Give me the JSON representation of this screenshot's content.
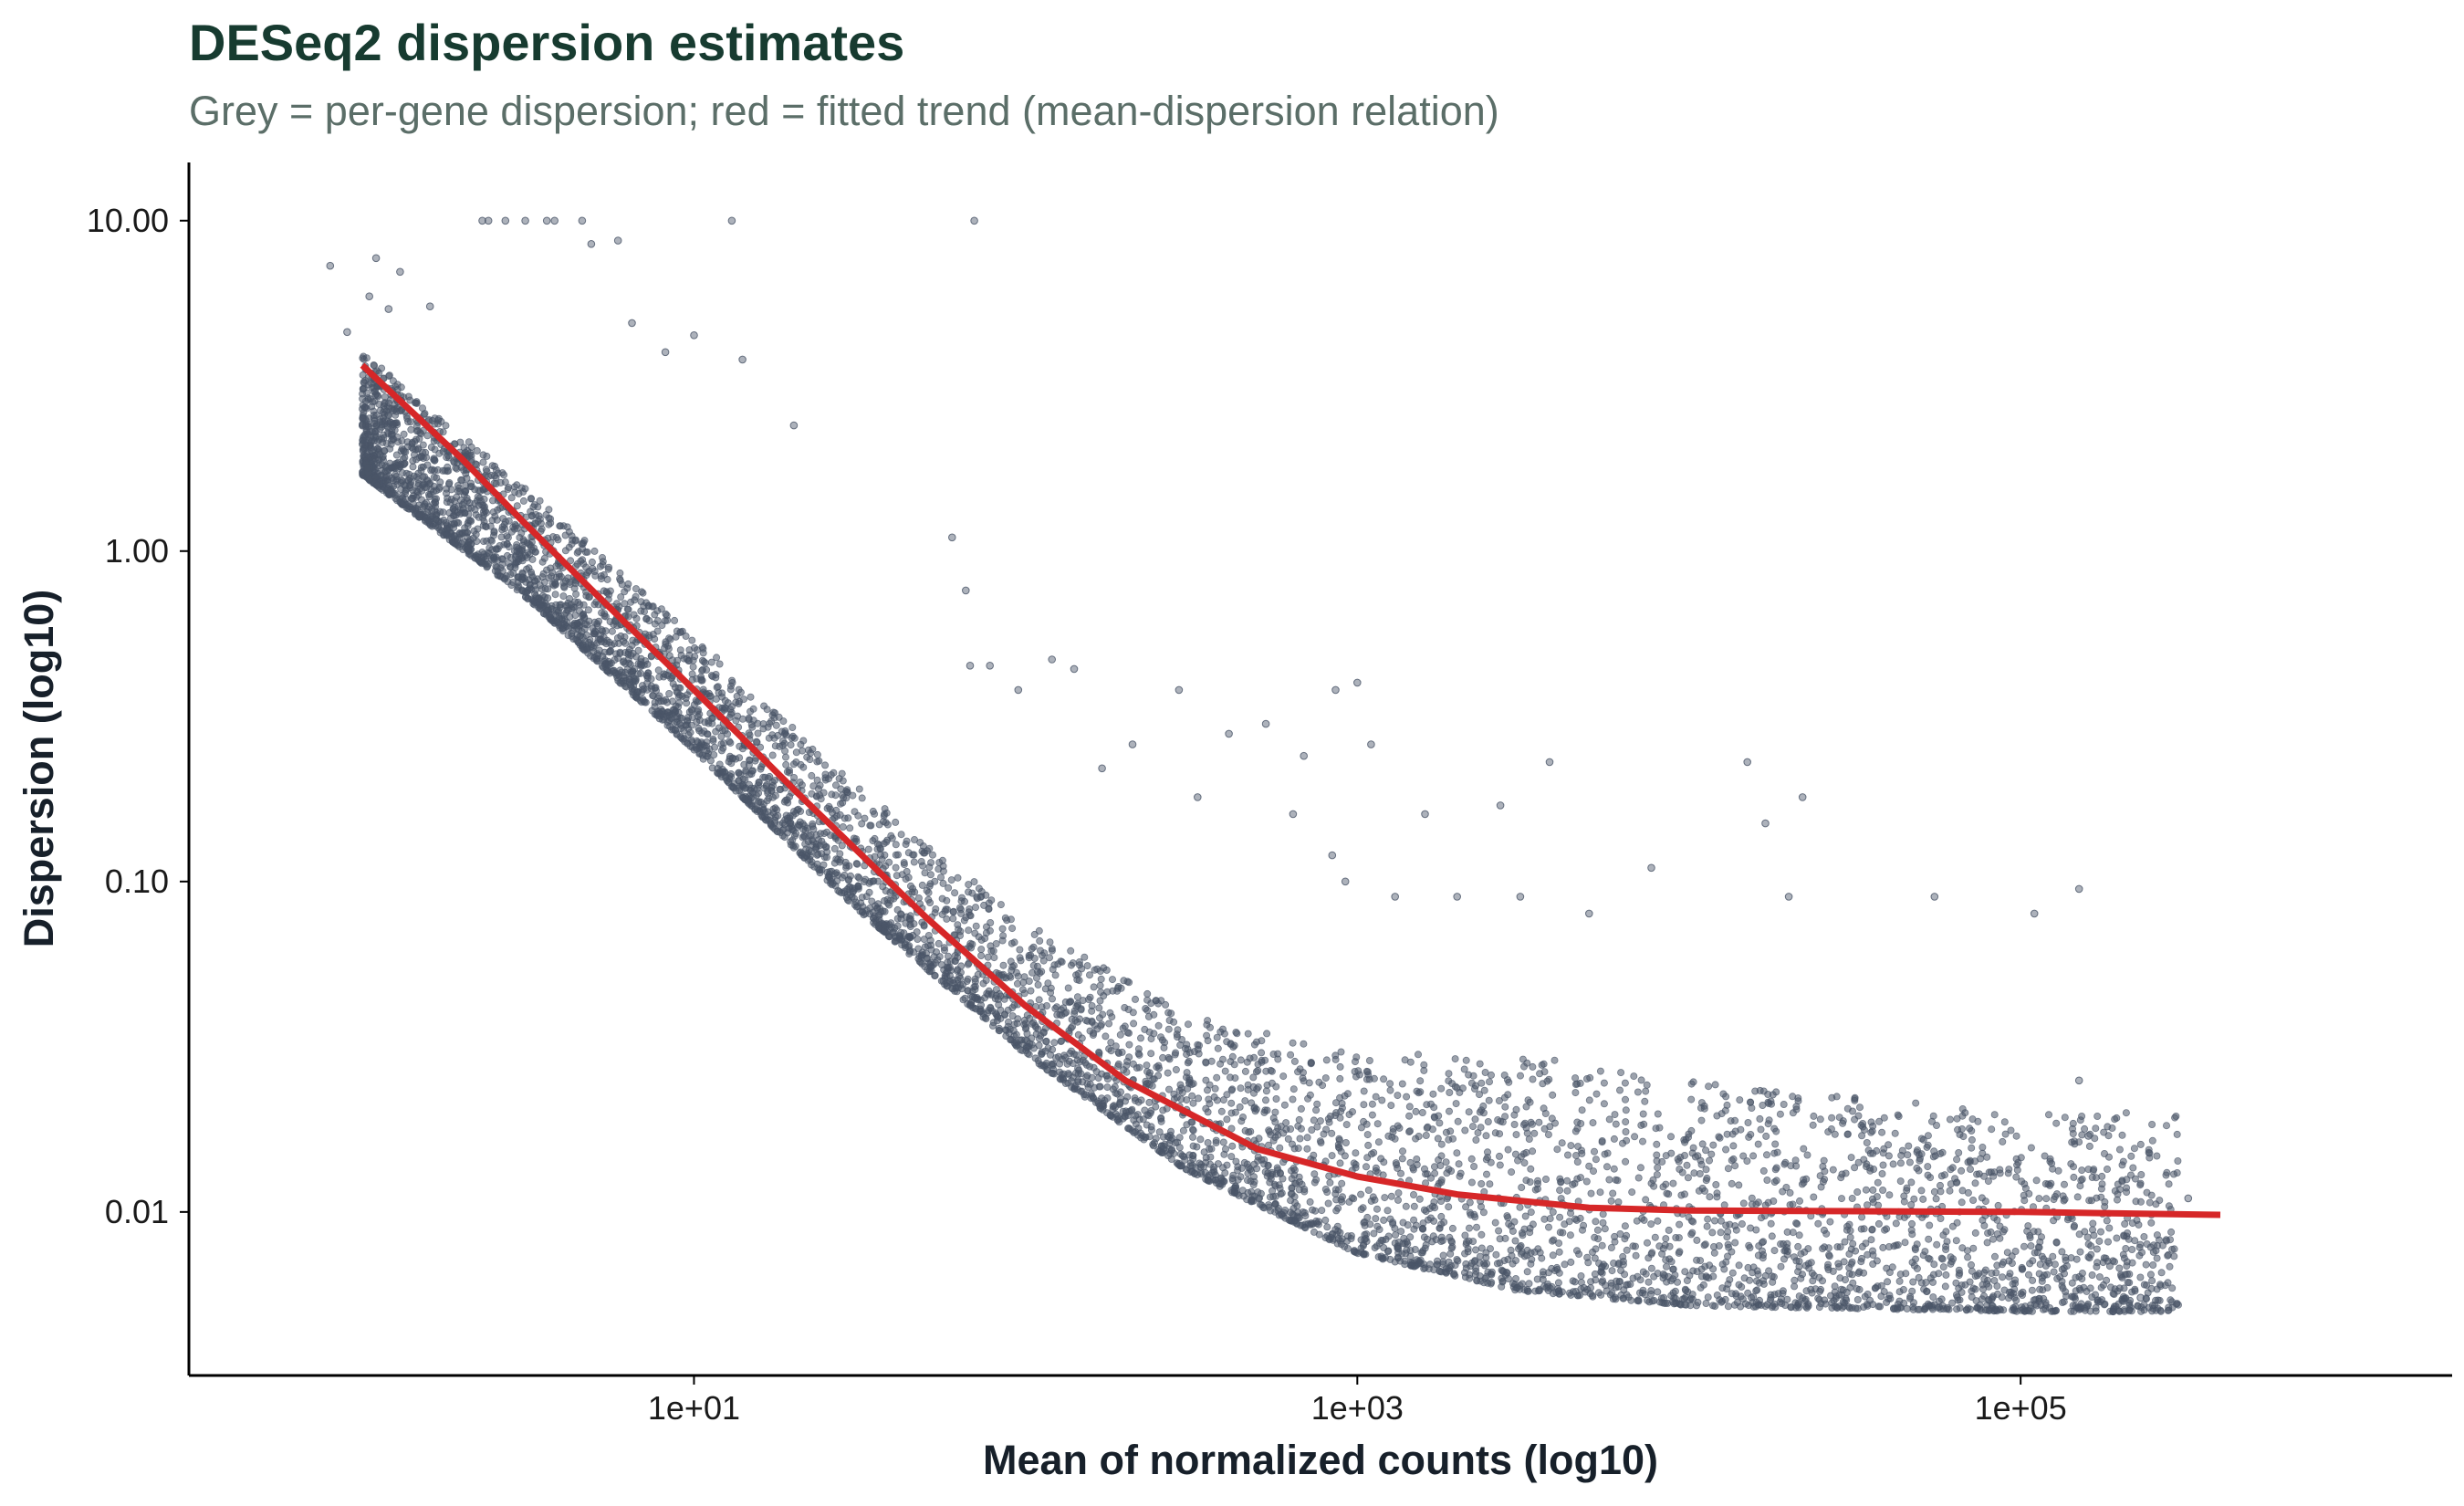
{
  "chart_data": {
    "type": "scatter",
    "title": "DESeq2 dispersion estimates",
    "subtitle": "Grey = per-gene dispersion; red = fitted trend (mean-dispersion relation)",
    "xlabel": "Mean of normalized counts (log10)",
    "ylabel": "Dispersion (log10)",
    "x_scale": "log10",
    "y_scale": "log10",
    "xlim": [
      0.3,
      2000000
    ],
    "ylim": [
      0.0032,
      15
    ],
    "x_ticks": [
      {
        "value": 10,
        "label": "1e+01"
      },
      {
        "value": 1000,
        "label": "1e+03"
      },
      {
        "value": 100000,
        "label": "1e+05"
      }
    ],
    "y_ticks": [
      {
        "value": 10,
        "label": "10.00"
      },
      {
        "value": 1,
        "label": "1.00"
      },
      {
        "value": 0.1,
        "label": "0.10"
      },
      {
        "value": 0.01,
        "label": "0.01"
      }
    ],
    "grid": false,
    "legend": "none",
    "colors": {
      "points": "#4a5568",
      "trend": "#d62728",
      "title": "#173b30",
      "subtitle": "#5b6e68",
      "axis": "#000000"
    },
    "series": [
      {
        "kind": "points",
        "points": [
          [
            0.8,
            7.3
          ],
          [
            1.1,
            7.7
          ],
          [
            1.3,
            7.0
          ],
          [
            1.2,
            5.4
          ],
          [
            1.05,
            5.9
          ],
          [
            0.9,
            4.6
          ],
          [
            1.6,
            5.5
          ],
          [
            2.3,
            10.0
          ],
          [
            2.4,
            10.0
          ],
          [
            2.7,
            10.0
          ],
          [
            3.1,
            10.0
          ],
          [
            3.6,
            10.0
          ],
          [
            3.8,
            10.0
          ],
          [
            4.6,
            10.0
          ],
          [
            4.9,
            8.5
          ],
          [
            5.9,
            8.7
          ],
          [
            13.0,
            10.0
          ],
          [
            70.0,
            10.0
          ],
          [
            6.5,
            4.9
          ],
          [
            8.2,
            4.0
          ],
          [
            10.0,
            4.5
          ],
          [
            14.0,
            3.8
          ],
          [
            20.0,
            2.4
          ],
          [
            60.0,
            1.1
          ],
          [
            66.0,
            0.76
          ],
          [
            68.0,
            0.45
          ],
          [
            78.0,
            0.45
          ],
          [
            95.0,
            0.38
          ],
          [
            120.0,
            0.47
          ],
          [
            140.0,
            0.44
          ],
          [
            170.0,
            0.22
          ],
          [
            210.0,
            0.26
          ],
          [
            290.0,
            0.38
          ],
          [
            330.0,
            0.18
          ],
          [
            410.0,
            0.28
          ],
          [
            530.0,
            0.3
          ],
          [
            640.0,
            0.16
          ],
          [
            690.0,
            0.24
          ],
          [
            860.0,
            0.38
          ],
          [
            1000.0,
            0.4
          ],
          [
            1100.0,
            0.26
          ],
          [
            840.0,
            0.12
          ],
          [
            920.0,
            0.1
          ],
          [
            1300.0,
            0.09
          ],
          [
            1600.0,
            0.16
          ],
          [
            2000.0,
            0.09
          ],
          [
            2700.0,
            0.17
          ],
          [
            3100.0,
            0.09
          ],
          [
            3800.0,
            0.23
          ],
          [
            5000.0,
            0.08
          ],
          [
            7700.0,
            0.11
          ],
          [
            15000.0,
            0.23
          ],
          [
            17000.0,
            0.15
          ],
          [
            22000.0,
            0.18
          ],
          [
            20000.0,
            0.09
          ],
          [
            55000.0,
            0.09
          ],
          [
            110000.0,
            0.08
          ],
          [
            150000.0,
            0.095
          ],
          [
            150000.0,
            0.025
          ],
          [
            160000.0,
            0.017
          ],
          [
            320000.0,
            0.011
          ],
          [
            230000.0,
            0.0055
          ],
          [
            190000.0,
            0.005
          ]
        ],
        "band": {
          "description": "dense cloud of per-gene dispersion estimates",
          "x_min": 1.0,
          "x_max": 300000,
          "lower": [
            [
              1.0,
              1.7
            ],
            [
              3.0,
              0.75
            ],
            [
              10.0,
              0.25
            ],
            [
              30.0,
              0.085
            ],
            [
              100.0,
              0.03
            ],
            [
              300.0,
              0.0135
            ],
            [
              1000.0,
              0.0075
            ],
            [
              3000.0,
              0.0058
            ],
            [
              10000.0,
              0.0052
            ],
            [
              100000.0,
              0.005
            ]
          ],
          "upper": [
            [
              1.0,
              4.0
            ],
            [
              3.0,
              1.6
            ],
            [
              10.0,
              0.55
            ],
            [
              30.0,
              0.2
            ],
            [
              100.0,
              0.075
            ],
            [
              300.0,
              0.04
            ],
            [
              1000.0,
              0.03
            ],
            [
              3000.0,
              0.03
            ],
            [
              10000.0,
              0.025
            ],
            [
              100000.0,
              0.02
            ]
          ]
        }
      },
      {
        "kind": "line",
        "points": [
          [
            1.0,
            3.65
          ],
          [
            2.0,
            1.9
          ],
          [
            3.0,
            1.25
          ],
          [
            5.0,
            0.75
          ],
          [
            10.0,
            0.38
          ],
          [
            20.0,
            0.19
          ],
          [
            50.0,
            0.078
          ],
          [
            100.0,
            0.042
          ],
          [
            200.0,
            0.025
          ],
          [
            500.0,
            0.0155
          ],
          [
            1000.0,
            0.0128
          ],
          [
            2000.0,
            0.0113
          ],
          [
            5000.0,
            0.0103
          ],
          [
            10000.0,
            0.0101
          ],
          [
            100000.0,
            0.01
          ],
          [
            400000.0,
            0.0098
          ]
        ]
      }
    ]
  }
}
